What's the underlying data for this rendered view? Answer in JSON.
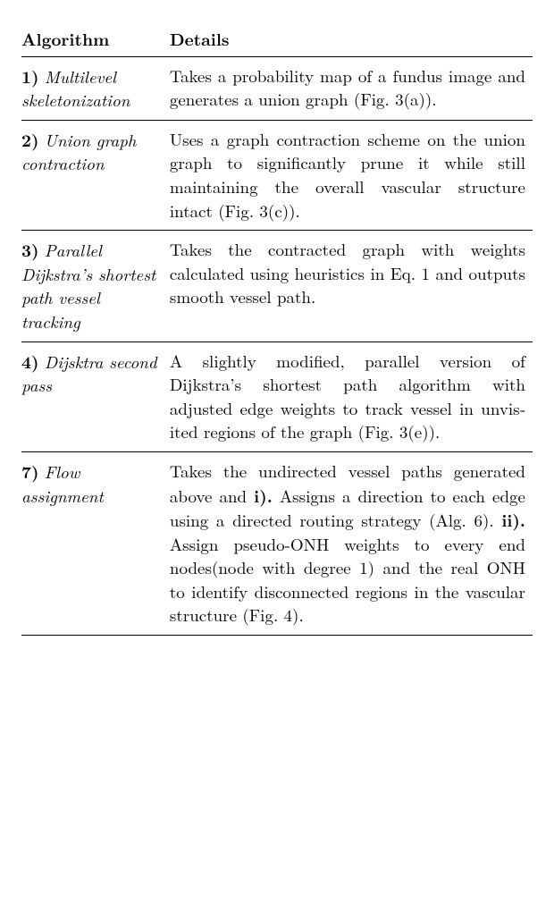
{
  "table": {
    "header_algorithm": "Algorithm",
    "header_details": "Details",
    "rows": [
      {
        "num": "1",
        "name": "Multilevel skeletoniza­tion",
        "details_html": "Takes a probability map of a fun­dus image and generates a union graph (Fig. 3(a))."
      },
      {
        "num": "2",
        "name": "Union graph contraction",
        "details_html": "Uses a graph contraction scheme on the union graph to sig­nificantly prune it while still maintaining the overall vascular structure intact (Fig. 3(c))."
      },
      {
        "num": "3",
        "name": "Parallel Dijkstra’s shortest path vessel tracking",
        "details_html": "Takes the contracted graph with weights calculated using heuris­tics in Eq. 1 and outputs smooth vessel path."
      },
      {
        "num": "4",
        "name": "Dijsktra second pass",
        "details_html": "A slightly modified, parallel ver­sion of Dijkstra’s shortest path algorithm with adjusted edge weights to track vessel in unvis­ited regions of the graph (Fig. 3(e))."
      },
      {
        "num": "7",
        "name": "Flow assignment",
        "details_html": "Takes the undirected vessel paths generated above and <span class=\"bold\">i).</span> Assigns a direction to each edge us­ing a directed routing strategy (Alg. 6). <span class=\"bold\">ii).</span> Assign pseudo-ONH weights to every end nodes(node with degree 1) and the real ONH to identify disconnected regions in the vascular structure (Fig. 4)."
      }
    ]
  }
}
